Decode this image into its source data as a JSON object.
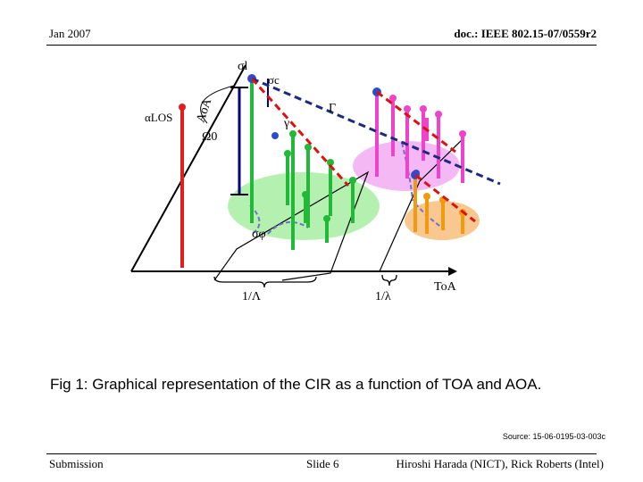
{
  "header": {
    "date": "Jan 2007",
    "doc_id": "doc.: IEEE 802.15-07/0559r2"
  },
  "diagram": {
    "labels": {
      "sigma_l": "σl",
      "sigma_c": "σc",
      "aoa": "AoA",
      "alpha_los": "αLOS",
      "omega_0": "Ω0",
      "gamma_upper": "Γ",
      "gamma_lower": "γ",
      "sigma_phi": "σφ",
      "inv_lambda_upper": "1/Λ",
      "inv_lambda_lower": "1/λ",
      "toa": "ToA"
    },
    "colors": {
      "los_ray": "#e02020",
      "aoa_spread_bar": "#000080",
      "cluster_1": "#22b838",
      "cluster_2": "#ee44cc",
      "cluster_3": "#f09a10",
      "cluster_1_region": "#b4f0b0",
      "cluster_2_region": "#f4b8f4",
      "cluster_3_region": "#f8c890",
      "cluster_decay": "#1a2a80",
      "ray_decay": "#dd1111",
      "projection": "#7070d0"
    }
  },
  "caption": "Fig 1: Graphical representation of the CIR as a function of TOA and AOA.",
  "source": "Source: 15-06-0195-03-003c",
  "footer": {
    "submitter": "Submission",
    "slide": "Slide 6",
    "authors": "Hiroshi Harada (NICT), Rick Roberts (Intel)"
  }
}
